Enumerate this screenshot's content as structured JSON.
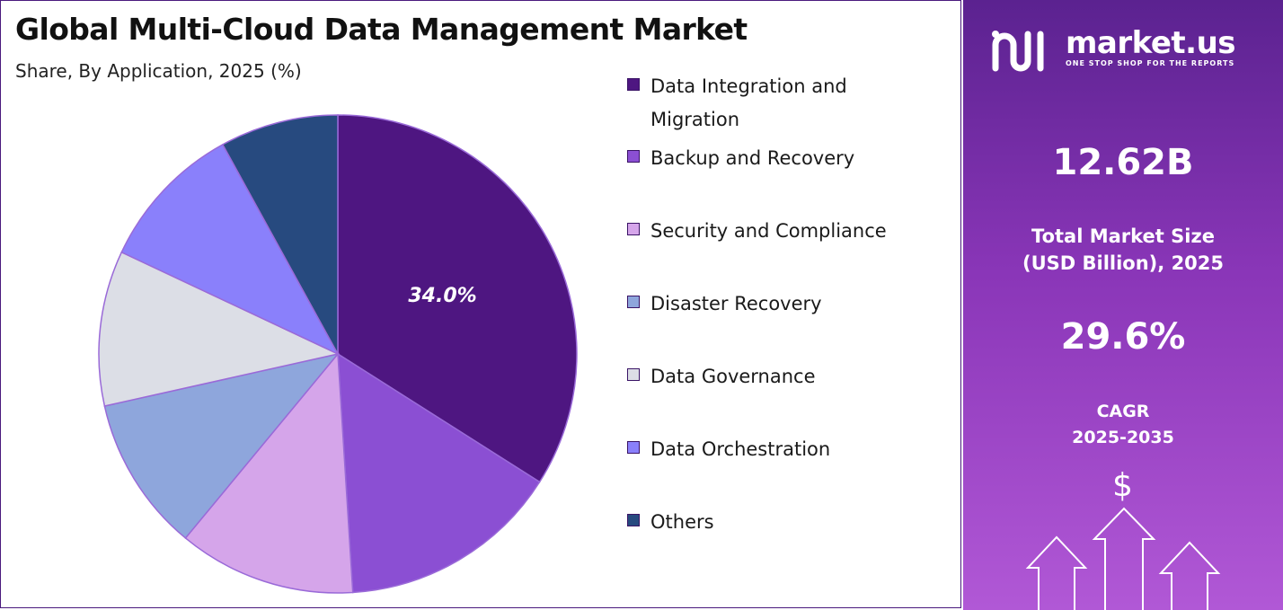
{
  "header": {
    "title": "Global Multi-Cloud Data Management Market",
    "subtitle": "Share, By Application, 2025 (%)"
  },
  "chart_data": {
    "type": "pie",
    "title": "Global Multi-Cloud Data Management Market",
    "subtitle": "Share, By Application, 2025 (%)",
    "start_angle_deg": 0,
    "direction": "clockwise",
    "legend_position": "right",
    "slices": [
      {
        "label": "Data Integration and Migration",
        "value": 34.0,
        "color": "#4e1681",
        "data_label": "34.0%"
      },
      {
        "label": "Backup and Recovery",
        "value": 15.0,
        "color": "#8b4fd3",
        "data_label": ""
      },
      {
        "label": "Security and Compliance",
        "value": 12.0,
        "color": "#d5a5ea",
        "data_label": ""
      },
      {
        "label": "Disaster Recovery",
        "value": 10.5,
        "color": "#8ea6dc",
        "data_label": ""
      },
      {
        "label": "Data Governance",
        "value": 10.5,
        "color": "#dcdee6",
        "data_label": ""
      },
      {
        "label": "Data Orchestration",
        "value": 10.0,
        "color": "#8a80fb",
        "data_label": ""
      },
      {
        "label": "Others",
        "value": 8.0,
        "color": "#274a7f",
        "data_label": ""
      }
    ]
  },
  "legend": {
    "items": [
      {
        "label": "Data Integration and Migration",
        "color": "#4e1681"
      },
      {
        "label": "Backup and Recovery",
        "color": "#8b4fd3"
      },
      {
        "label": "Security and Compliance",
        "color": "#d5a5ea"
      },
      {
        "label": "Disaster Recovery",
        "color": "#8ea6dc"
      },
      {
        "label": "Data Governance",
        "color": "#dcdee6"
      },
      {
        "label": "Data Orchestration",
        "color": "#8a80fb"
      },
      {
        "label": "Others",
        "color": "#274a7f"
      }
    ]
  },
  "sidebar": {
    "brand_name": "market.us",
    "brand_tagline": "ONE STOP SHOP FOR THE REPORTS",
    "market_size_value": "12.62B",
    "market_size_label": "Total Market Size (USD Billion), 2025",
    "cagr_value": "29.6%",
    "cagr_label": "CAGR",
    "cagr_period": "2025-2035",
    "dollar_symbol": "$",
    "accent_color": "#8a36b8"
  }
}
